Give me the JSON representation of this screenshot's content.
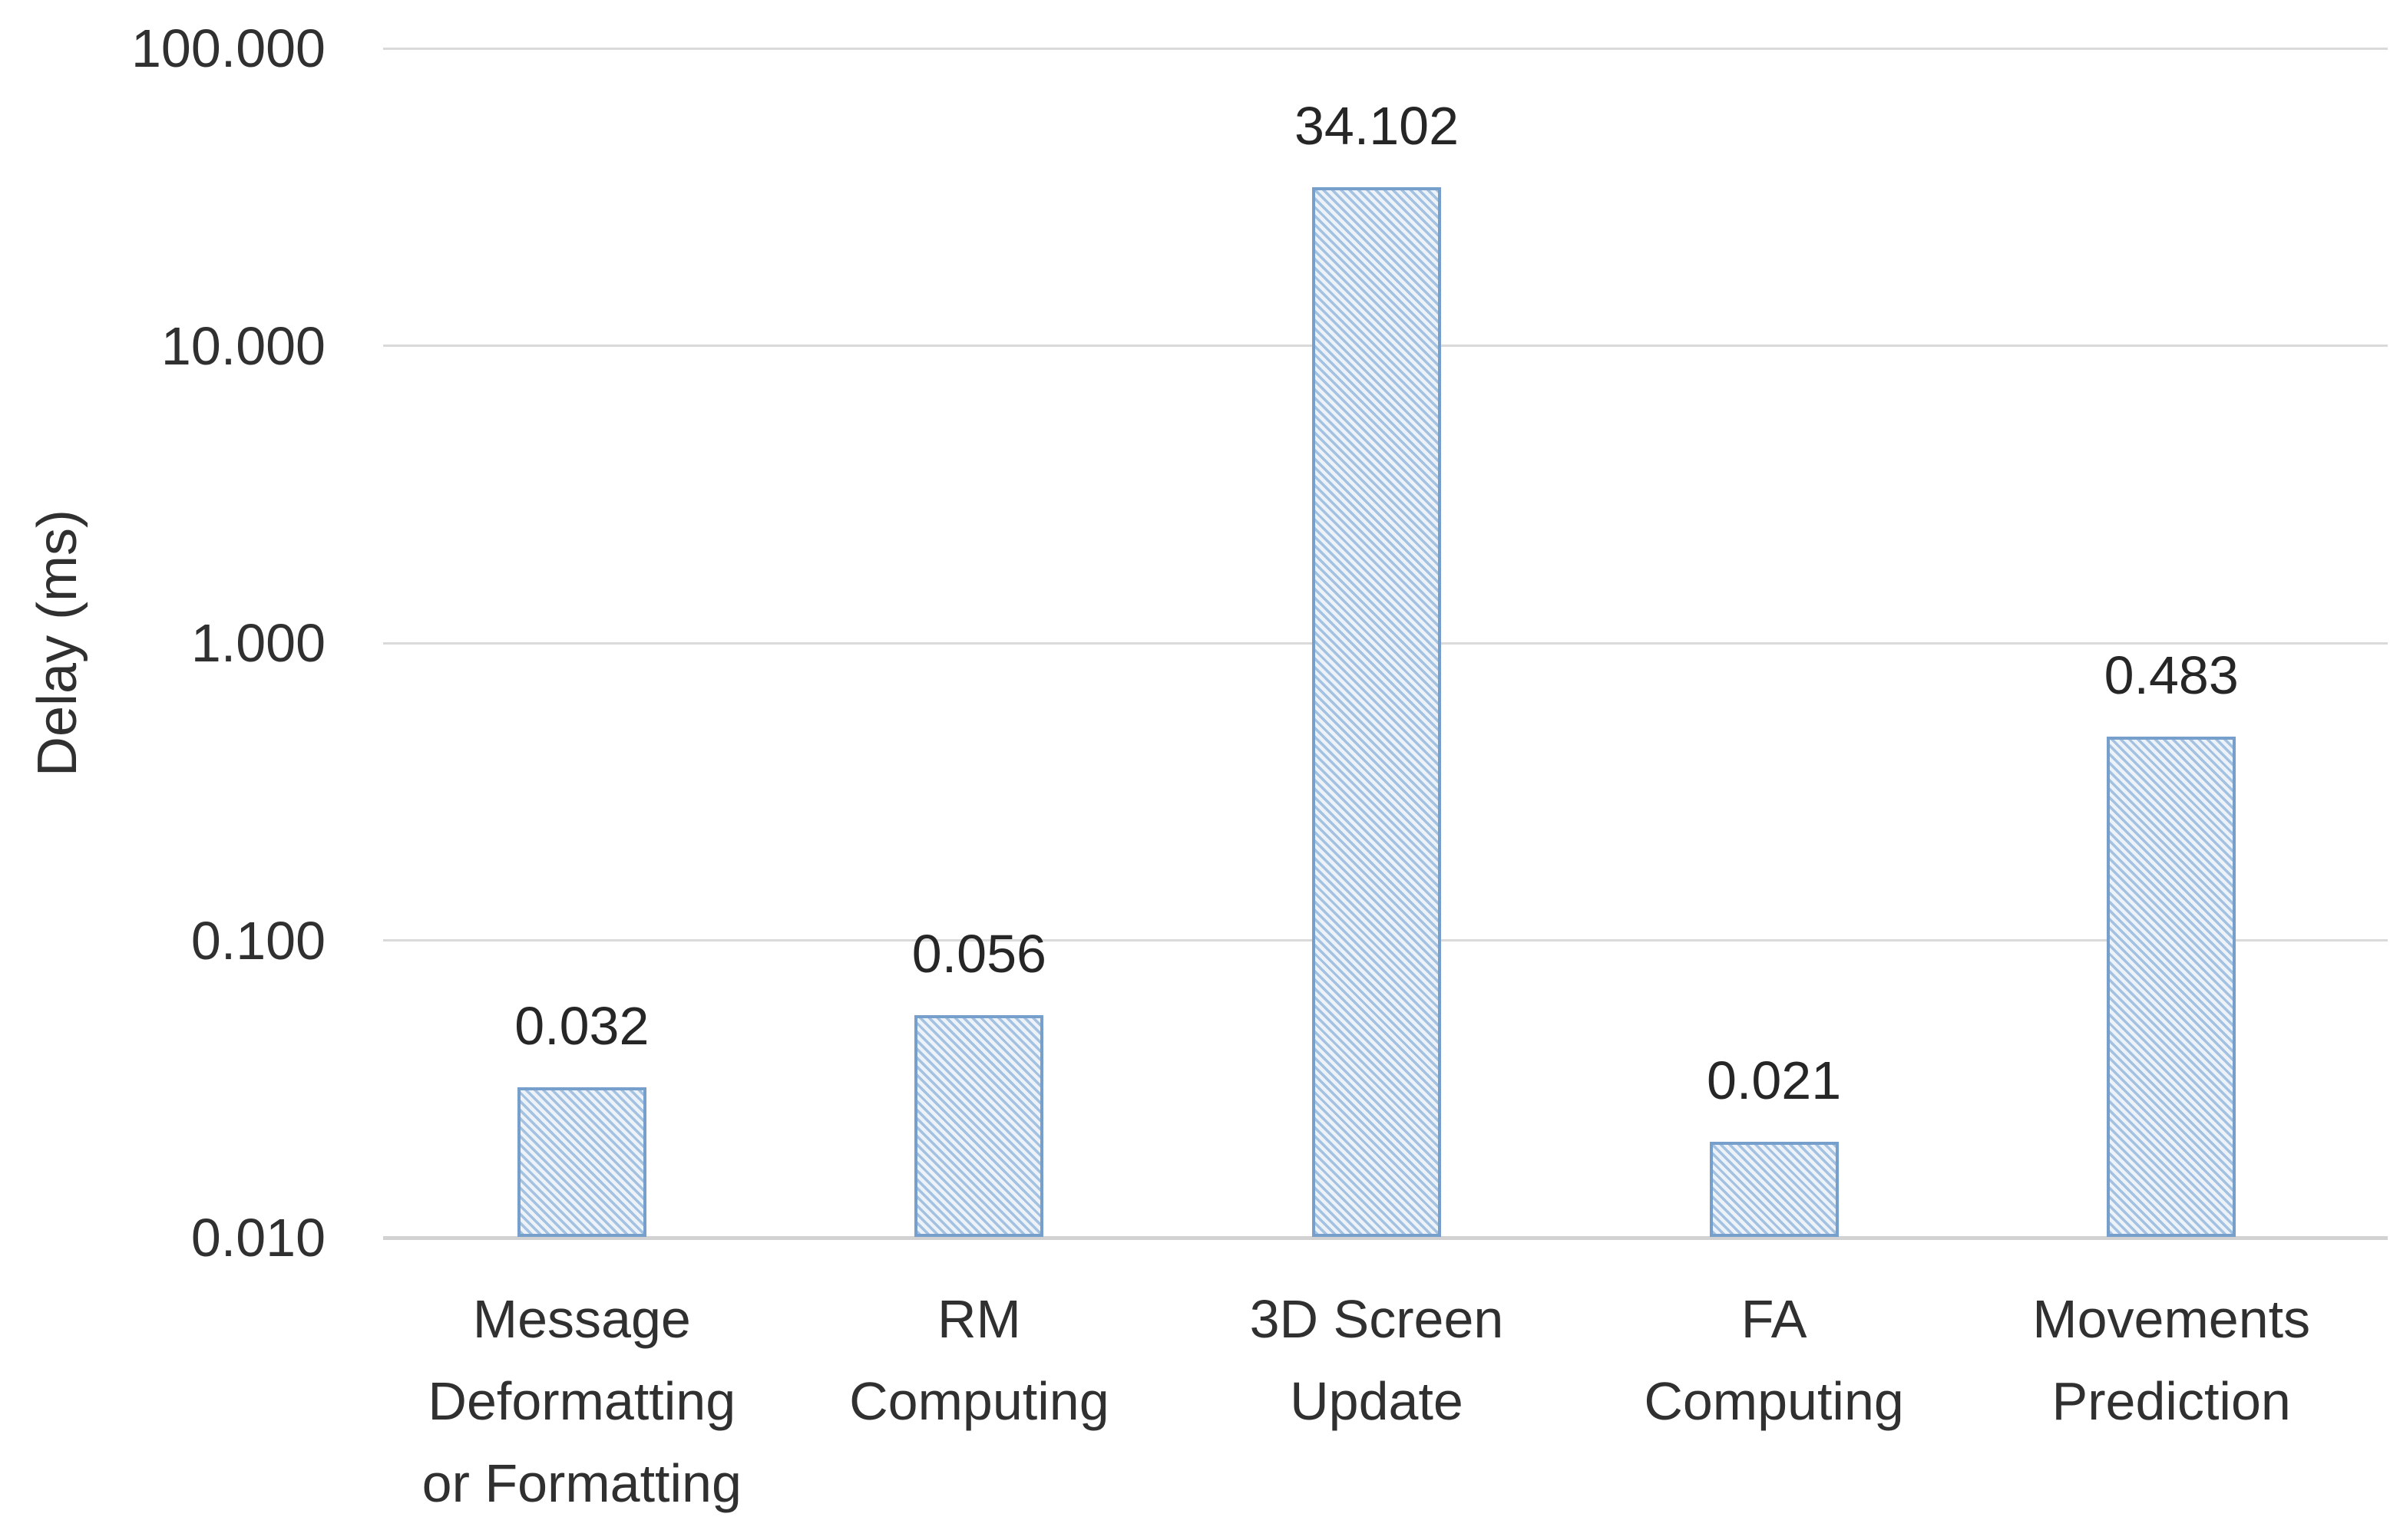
{
  "chart_data": {
    "type": "bar",
    "title": "",
    "xlabel": "",
    "ylabel": "Delay (ms)",
    "y_scale": "log",
    "ylim": [
      0.01,
      100
    ],
    "grid": true,
    "legend": false,
    "categories": [
      "Message Deformatting or Formatting",
      "RM Computing",
      "3D Screen Update",
      "FA Computing",
      "Movements Prediction"
    ],
    "category_lines": [
      [
        "Message",
        "Deformatting",
        "or Formatting"
      ],
      [
        "RM",
        "Computing"
      ],
      [
        "3D Screen",
        "Update"
      ],
      [
        "FA",
        "Computing"
      ],
      [
        "Movements",
        "Prediction"
      ]
    ],
    "values": [
      0.032,
      0.056,
      34.102,
      0.021,
      0.483
    ],
    "data_labels": [
      "0.032",
      "0.056",
      "34.102",
      "0.021",
      "0.483"
    ],
    "y_ticks": [
      {
        "value": 100,
        "label": "100.000"
      },
      {
        "value": 10,
        "label": "10.000"
      },
      {
        "value": 1,
        "label": "1.000"
      },
      {
        "value": 0.1,
        "label": "0.100"
      },
      {
        "value": 0.01,
        "label": "0.010"
      }
    ],
    "colors": {
      "bar_fill_bg": "#edf2f9",
      "bar_stripe": "#a3c2e2",
      "bar_border": "#779fcc",
      "gridline": "#dadada",
      "axis_line": "#d2d2d2",
      "text": "#303030"
    }
  }
}
